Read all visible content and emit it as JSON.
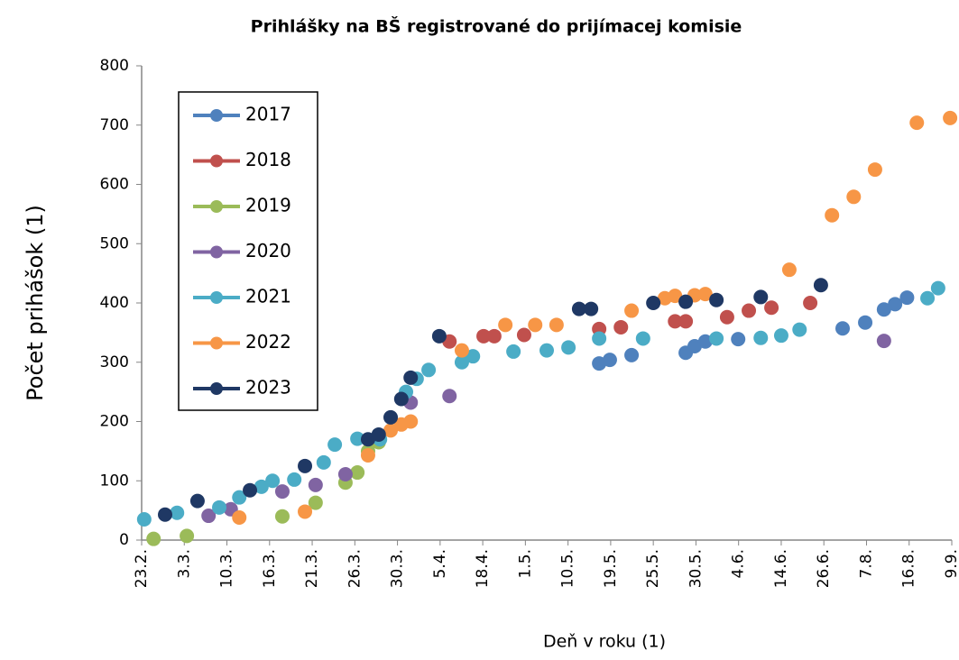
{
  "chart_data": {
    "type": "scatter",
    "title": "Prihlášky na BŠ registrované do prijímacej komisie",
    "xlabel": "Deň v roku (1)",
    "ylabel": "Počet prihášok (1)",
    "xlim": [
      0,
      19
    ],
    "ylim": [
      0,
      800
    ],
    "yticks": [
      0,
      100,
      200,
      300,
      400,
      500,
      600,
      700,
      800
    ],
    "xticks": [
      {
        "value": 0,
        "label": "23.2."
      },
      {
        "value": 1,
        "label": "3.3."
      },
      {
        "value": 2,
        "label": "10.3."
      },
      {
        "value": 3,
        "label": "16.3."
      },
      {
        "value": 4,
        "label": "21.3."
      },
      {
        "value": 5,
        "label": "26.3."
      },
      {
        "value": 6,
        "label": "30.3."
      },
      {
        "value": 7,
        "label": "5.4."
      },
      {
        "value": 8,
        "label": "18.4."
      },
      {
        "value": 9,
        "label": "1.5."
      },
      {
        "value": 10,
        "label": "10.5."
      },
      {
        "value": 11,
        "label": "19.5."
      },
      {
        "value": 12,
        "label": "25.5."
      },
      {
        "value": 13,
        "label": "30.5."
      },
      {
        "value": 14,
        "label": "4.6."
      },
      {
        "value": 15,
        "label": "14.6."
      },
      {
        "value": 16,
        "label": "26.6."
      },
      {
        "value": 17,
        "label": "7.8."
      },
      {
        "value": 18,
        "label": "16.8."
      },
      {
        "value": 19,
        "label": "9.9."
      }
    ],
    "legend": "upper left",
    "series": [
      {
        "name": "2017",
        "color": "#4f81bd",
        "x": [
          10.73,
          10.98,
          11.49,
          12.76,
          12.97,
          13.22,
          13.99,
          16.44,
          16.97,
          17.41,
          17.67,
          17.95
        ],
        "values": [
          298,
          304,
          312,
          316,
          327,
          335,
          339,
          357,
          367,
          389,
          398,
          409
        ]
      },
      {
        "name": "2018",
        "color": "#c0504d",
        "x": [
          7.22,
          8.02,
          8.27,
          8.97,
          10.73,
          11.24,
          12.51,
          12.76,
          13.73,
          14.24,
          14.77,
          15.68
        ],
        "values": [
          335,
          344,
          344,
          346,
          356,
          359,
          369,
          369,
          376,
          387,
          392,
          400
        ]
      },
      {
        "name": "2019",
        "color": "#9bbb59",
        "x": [
          0.28,
          1.06,
          3.3,
          4.08,
          4.78,
          5.06,
          5.31,
          5.56
        ],
        "values": [
          2,
          7,
          40,
          63,
          97,
          114,
          150,
          165
        ]
      },
      {
        "name": "2020",
        "color": "#8064a2",
        "x": [
          1.57,
          2.09,
          3.3,
          4.08,
          4.78,
          6.31,
          7.22,
          17.41
        ],
        "values": [
          41,
          52,
          82,
          93,
          111,
          232,
          243,
          336
        ]
      },
      {
        "name": "2021",
        "color": "#4bacc6",
        "x": [
          0.06,
          0.83,
          1.82,
          2.29,
          2.81,
          3.07,
          3.58,
          4.27,
          4.53,
          5.06,
          5.59,
          6.2,
          6.45,
          6.73,
          7.51,
          7.77,
          8.72,
          9.5,
          10.01,
          10.73,
          11.76,
          13.48,
          14.52,
          15.0,
          15.43,
          18.43,
          18.68
        ],
        "values": [
          35,
          46,
          55,
          72,
          90,
          100,
          102,
          131,
          161,
          171,
          170,
          250,
          272,
          287,
          300,
          310,
          318,
          320,
          325,
          340,
          340,
          340,
          341,
          345,
          355,
          408,
          425
        ]
      },
      {
        "name": "2022",
        "color": "#f79646",
        "x": [
          2.29,
          3.83,
          5.31,
          5.84,
          6.09,
          6.31,
          7.51,
          8.53,
          9.23,
          9.73,
          11.49,
          12.27,
          12.51,
          12.97,
          13.22,
          15.19,
          16.19,
          16.7,
          17.2,
          18.18,
          18.96
        ],
        "values": [
          38,
          48,
          143,
          185,
          195,
          200,
          320,
          363,
          363,
          363,
          387,
          408,
          412,
          413,
          415,
          456,
          548,
          579,
          625,
          704,
          712
        ]
      },
      {
        "name": "2023",
        "color": "#1f3864",
        "x": [
          0.55,
          1.31,
          2.54,
          3.83,
          5.31,
          5.56,
          5.84,
          6.09,
          6.31,
          6.98,
          10.26,
          10.54,
          12.0,
          12.76,
          13.48,
          14.52,
          15.93
        ],
        "values": [
          43,
          66,
          84,
          125,
          170,
          178,
          207,
          238,
          274,
          344,
          390,
          390,
          400,
          402,
          405,
          410,
          430
        ]
      }
    ]
  }
}
